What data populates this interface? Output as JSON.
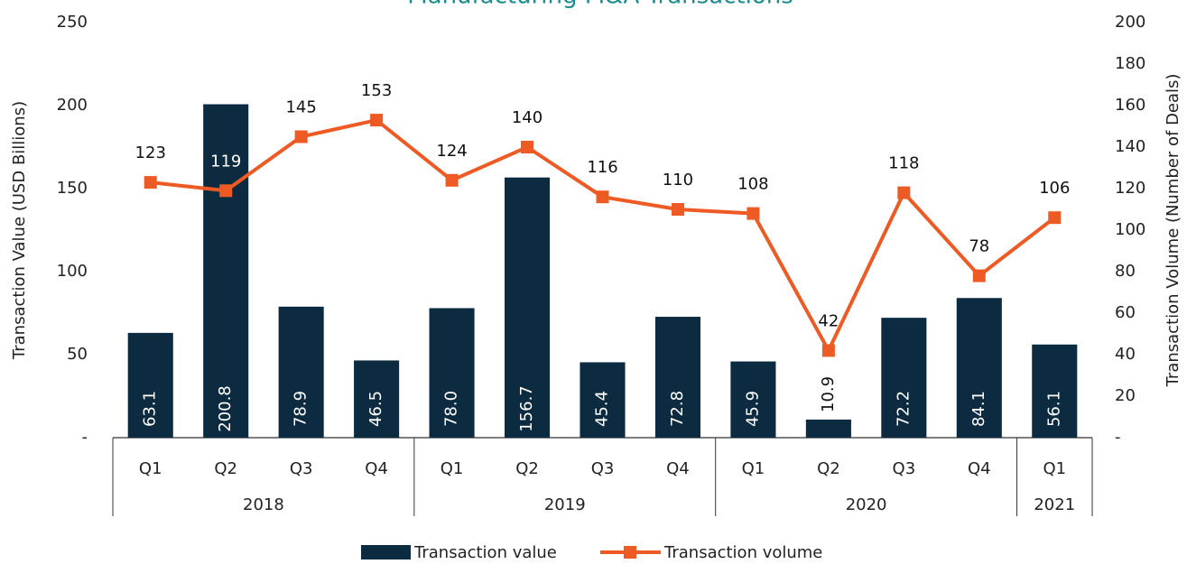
{
  "chart_data": {
    "type": "bar_line",
    "title": "Manufacturing M&A Transactions",
    "y_label": "Transaction Value (USD Billions)",
    "y2_label": "Transaction Volume (Number of Deals)",
    "groups": [
      {
        "name": "2018",
        "categories": [
          "Q1",
          "Q2",
          "Q3",
          "Q4"
        ]
      },
      {
        "name": "2019",
        "categories": [
          "Q1",
          "Q2",
          "Q3",
          "Q4"
        ]
      },
      {
        "name": "2020",
        "categories": [
          "Q1",
          "Q2",
          "Q3",
          "Q4"
        ]
      },
      {
        "name": "2021",
        "categories": [
          "Q1"
        ]
      }
    ],
    "series": [
      {
        "name": "Transaction value",
        "type": "bar",
        "color": "#0d2b40",
        "axis": "y",
        "values": [
          63.1,
          200.8,
          78.9,
          46.5,
          78.0,
          156.7,
          45.4,
          72.8,
          45.9,
          10.9,
          72.2,
          84.1,
          56.1
        ],
        "value_labels": [
          "63.1",
          "200.8",
          "78.9",
          "46.5",
          "78.0",
          "156.7",
          "45.4",
          "72.8",
          "45.9",
          "10.9",
          "72.2",
          "84.1",
          "56.1"
        ]
      },
      {
        "name": "Transaction volume",
        "type": "line",
        "color": "#ee5a24",
        "axis": "y2",
        "values": [
          123,
          119,
          145,
          153,
          124,
          140,
          116,
          110,
          108,
          42,
          118,
          78,
          106
        ]
      }
    ],
    "ylim": [
      0,
      250
    ],
    "yticks": [
      {
        "value": 0,
        "label": "-"
      },
      50,
      100,
      150,
      200,
      250
    ],
    "y2lim": [
      0,
      200
    ],
    "y2ticks": [
      {
        "value": 0,
        "label": "-"
      },
      20,
      40,
      60,
      80,
      100,
      120,
      140,
      160,
      180,
      200
    ],
    "legend": "bottom"
  }
}
